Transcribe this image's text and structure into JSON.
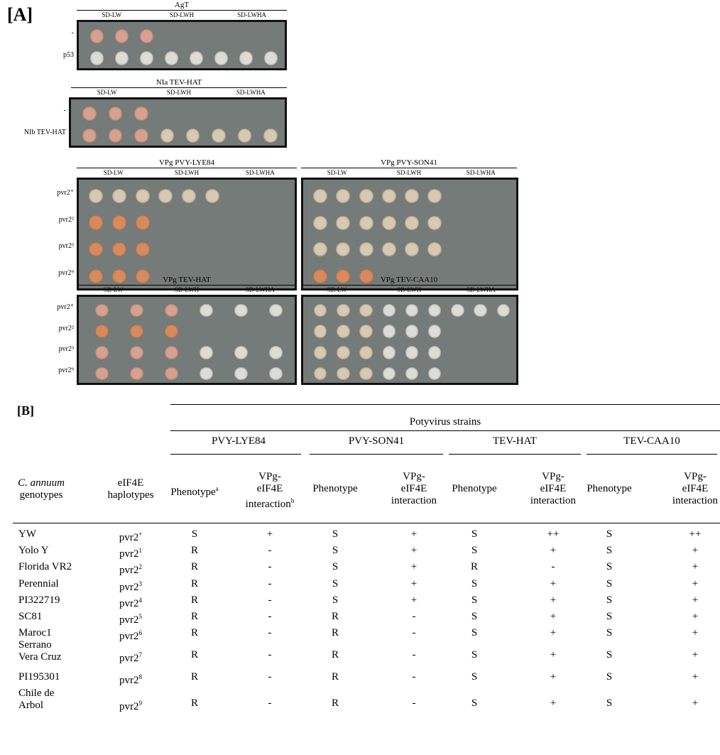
{
  "panel_a": {
    "label": "[A]",
    "media": [
      "SD-LW",
      "SD-LWH",
      "SD-LWHA"
    ],
    "plates": [
      {
        "title": "AgT",
        "rows": [
          "-",
          "p53"
        ]
      },
      {
        "title": "NIa TEV-HAT",
        "rows": [
          "-",
          "NIb TEV-HAT"
        ]
      },
      {
        "title": "VPg PVY-LYE84",
        "rows": [
          "pvr2⁺",
          "pvr2²",
          "pvr2³",
          "pvr2⁹"
        ]
      },
      {
        "title": "VPg PVY-SON41",
        "rows": []
      },
      {
        "title": "VPg TEV-HAT",
        "rows": [
          "pvr2⁺",
          "pvr2²",
          "pvr2³",
          "pvr2⁹"
        ]
      },
      {
        "title": "VPg TEV-CAA10",
        "rows": []
      }
    ]
  },
  "panel_b": {
    "label": "[B]",
    "group_header": "Potyvirus strains",
    "strains": [
      "PVY-LYE84",
      "PVY-SON41",
      "TEV-HAT",
      "TEV-CAA10"
    ],
    "col_genotypes": [
      "C. annuum",
      "genotypes"
    ],
    "col_haplotypes": [
      "eIF4E",
      "haplotypes"
    ],
    "phenotype": "Phenotype",
    "phenotype_mark": "a",
    "interaction": [
      "VPg-",
      "eIF4E",
      "interaction"
    ],
    "interaction_mark": "b",
    "rows": [
      {
        "genotype": [
          "YW"
        ],
        "base": "pvr2",
        "sup": "+",
        "values": [
          "S",
          "+",
          "S",
          "+",
          "S",
          "++",
          "S",
          "++"
        ]
      },
      {
        "genotype": [
          "Yolo Y"
        ],
        "base": "pvr2",
        "sup": "1",
        "values": [
          "R",
          "-",
          "S",
          "+",
          "S",
          "+",
          "S",
          "+"
        ]
      },
      {
        "genotype": [
          "Florida VR2"
        ],
        "base": "pvr2",
        "sup": "2",
        "values": [
          "R",
          "-",
          "S",
          "+",
          "R",
          "-",
          "S",
          "+"
        ]
      },
      {
        "genotype": [
          "Perennial"
        ],
        "base": "pvr2",
        "sup": "3",
        "values": [
          "R",
          "-",
          "S",
          "+",
          "S",
          "+",
          "S",
          "+"
        ]
      },
      {
        "genotype": [
          "PI322719"
        ],
        "base": "pvr2",
        "sup": "4",
        "values": [
          "R",
          "-",
          "S",
          "+",
          "S",
          "+",
          "S",
          "+"
        ]
      },
      {
        "genotype": [
          "SC81"
        ],
        "base": "pvr2",
        "sup": "5",
        "values": [
          "R",
          "-",
          "R",
          "-",
          "S",
          "+",
          "S",
          "+"
        ]
      },
      {
        "genotype": [
          "Maroc1"
        ],
        "base": "pvr2",
        "sup": "6",
        "values": [
          "R",
          "-",
          "R",
          "-",
          "S",
          "+",
          "S",
          "+"
        ]
      },
      {
        "genotype": [
          "Serrano",
          "Vera Cruz"
        ],
        "base": "pvr2",
        "sup": "7",
        "values": [
          "R",
          "-",
          "R",
          "-",
          "S",
          "+",
          "S",
          "+"
        ]
      },
      {
        "genotype": [
          "PI195301"
        ],
        "base": "pvr2",
        "sup": "8",
        "values": [
          "R",
          "-",
          "R",
          "-",
          "S",
          "+",
          "S",
          "+"
        ]
      },
      {
        "genotype": [
          "Chile de",
          "Arbol"
        ],
        "base": "pvr2",
        "sup": "9",
        "values": [
          "R",
          "-",
          "R",
          "-",
          "S",
          "+",
          "S",
          "+"
        ]
      }
    ]
  }
}
